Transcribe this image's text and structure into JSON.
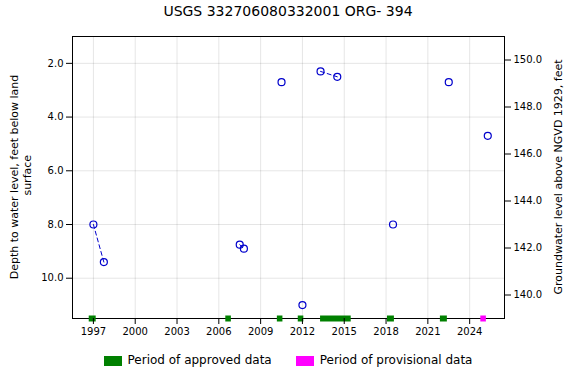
{
  "chart_data": {
    "type": "scatter",
    "title": "USGS 332706080332001 ORG- 394",
    "y_label": "Depth to water level, feet below land\n surface",
    "y2_label": "Groundwater level above NGVD 1929, feet",
    "xlim": [
      1995.5,
      2026.5
    ],
    "xticks": [
      1997,
      2000,
      2003,
      2006,
      2009,
      2012,
      2015,
      2018,
      2021,
      2024
    ],
    "ylim": [
      11.5,
      1.0
    ],
    "yticks": [
      {
        "value": 2.0,
        "label": "2.0"
      },
      {
        "value": 4.0,
        "label": "4.0"
      },
      {
        "value": 6.0,
        "label": "6.0"
      },
      {
        "value": 8.0,
        "label": "8.0"
      },
      {
        "value": 10.0,
        "label": "10.0"
      }
    ],
    "y2lim": [
      139.0,
      151.0
    ],
    "y2ticks": [
      {
        "value": 140.0,
        "label": "140.0"
      },
      {
        "value": 142.0,
        "label": "142.0"
      },
      {
        "value": 144.0,
        "label": "144.0"
      },
      {
        "value": 146.0,
        "label": "146.0"
      },
      {
        "value": 148.0,
        "label": "148.0"
      },
      {
        "value": 150.0,
        "label": "150.0"
      }
    ],
    "x": [
      1997.0,
      1997.75,
      2007.5,
      2007.8,
      2010.5,
      2012.0,
      2013.3,
      2014.5,
      2018.5,
      2022.5,
      2025.3
    ],
    "values": [
      8.0,
      9.4,
      8.75,
      8.9,
      2.7,
      11.0,
      2.3,
      2.5,
      8.0,
      2.7,
      4.7
    ],
    "connected_groups": [
      [
        0,
        1
      ],
      [
        2,
        3
      ],
      [
        6,
        7
      ]
    ],
    "color": "#0000CC",
    "marker": "circle",
    "line_style": "dashed",
    "periods": [
      {
        "name": "Period of approved data",
        "color": "#008000",
        "ranges": [
          [
            1996.7,
            1997.2
          ],
          [
            2006.5,
            2006.9
          ],
          [
            2010.2,
            2010.6
          ],
          [
            2011.7,
            2012.1
          ],
          [
            2013.3,
            2015.5
          ],
          [
            2018.1,
            2018.6
          ],
          [
            2021.9,
            2022.4
          ]
        ]
      },
      {
        "name": "Period of provisional data",
        "color": "#FF00FF",
        "ranges": [
          [
            2024.8,
            2025.2
          ]
        ]
      }
    ],
    "grid": true,
    "legend": "bottom"
  }
}
